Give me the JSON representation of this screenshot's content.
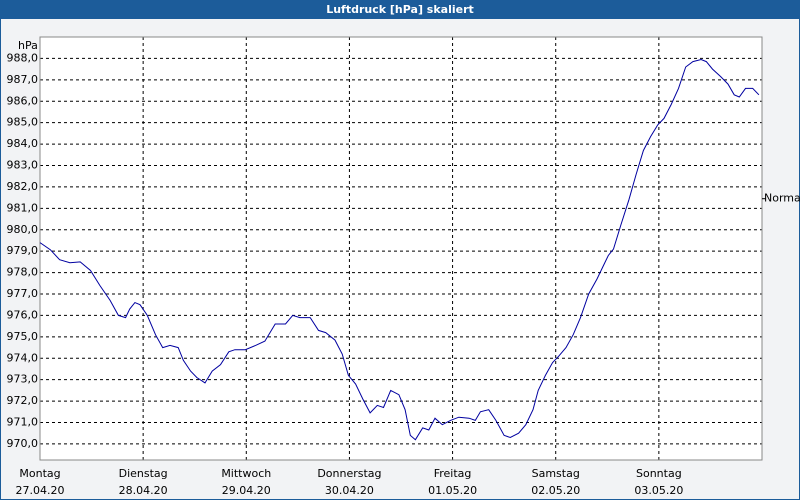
{
  "chart_data": {
    "type": "line",
    "title": "Luftdruck [hPa] skaliert",
    "y_label": "hPa",
    "x": [
      0,
      0.1,
      0.19,
      0.29,
      0.39,
      0.49,
      0.58,
      0.68,
      0.76,
      0.83,
      0.87,
      0.92,
      0.97,
      1.04,
      1.12,
      1.19,
      1.26,
      1.34,
      1.39,
      1.46,
      1.52,
      1.6,
      1.67,
      1.75,
      1.83,
      1.89,
      1.99,
      2.09,
      2.18,
      2.28,
      2.38,
      2.45,
      2.52,
      2.62,
      2.7,
      2.77,
      2.86,
      2.93,
      2.99,
      3.06,
      3.13,
      3.2,
      3.27,
      3.33,
      3.4,
      3.48,
      3.54,
      3.59,
      3.64,
      3.71,
      3.77,
      3.83,
      3.9,
      3.98,
      4.06,
      4.16,
      4.22,
      4.27,
      4.35,
      4.42,
      4.5,
      4.56,
      4.64,
      4.71,
      4.78,
      4.83,
      4.9,
      4.97,
      5.03,
      5.1,
      5.17,
      5.24,
      5.32,
      5.4,
      5.47,
      5.51,
      5.56,
      5.63,
      5.71,
      5.78,
      5.85,
      5.92,
      5.99,
      6.05,
      6.12,
      6.19,
      6.26,
      6.33,
      6.41,
      6.46,
      6.52,
      6.6,
      6.67,
      6.73,
      6.78,
      6.84,
      6.91,
      6.97
    ],
    "values": [
      979.4,
      979.07,
      978.6,
      978.46,
      978.5,
      978.1,
      977.4,
      976.7,
      976.0,
      975.9,
      976.3,
      976.6,
      976.5,
      976.0,
      975.1,
      974.5,
      974.6,
      974.5,
      973.9,
      973.4,
      973.1,
      972.85,
      973.4,
      973.7,
      974.3,
      974.4,
      974.4,
      974.6,
      974.8,
      975.6,
      975.6,
      976.0,
      975.9,
      975.9,
      975.3,
      975.2,
      974.85,
      974.2,
      973.2,
      972.8,
      972.1,
      971.45,
      971.8,
      971.7,
      972.5,
      972.3,
      971.6,
      970.4,
      970.2,
      970.75,
      970.65,
      971.2,
      970.9,
      971.1,
      971.25,
      971.2,
      971.1,
      971.5,
      971.6,
      971.1,
      970.4,
      970.3,
      970.5,
      970.9,
      971.6,
      972.5,
      973.2,
      973.8,
      974.1,
      974.5,
      975.1,
      975.9,
      977.0,
      977.7,
      978.4,
      978.8,
      979.1,
      980.2,
      981.4,
      982.6,
      983.7,
      984.35,
      984.9,
      985.2,
      985.85,
      986.6,
      987.6,
      987.85,
      987.95,
      987.85,
      987.5,
      987.15,
      986.8,
      986.3,
      986.2,
      986.6,
      986.6,
      986.3
    ],
    "color": "#0000a0",
    "xlim": [
      0,
      7
    ],
    "xticks": [
      {
        "value": 0,
        "label": [
          "Montag",
          "27.04.20"
        ]
      },
      {
        "value": 1,
        "label": [
          "Dienstag",
          "28.04.20"
        ]
      },
      {
        "value": 2,
        "label": [
          "Mittwoch",
          "29.04.20"
        ]
      },
      {
        "value": 3,
        "label": [
          "Donnerstag",
          "30.04.20"
        ]
      },
      {
        "value": 4,
        "label": [
          "Freitag",
          "01.05.20"
        ]
      },
      {
        "value": 5,
        "label": [
          "Samstag",
          "02.05.20"
        ]
      },
      {
        "value": 6,
        "label": [
          "Sonntag",
          "03.05.20"
        ]
      }
    ],
    "ylim": [
      969.25,
      989
    ],
    "yticks": [
      {
        "value": 970,
        "label": "970,0"
      },
      {
        "value": 971,
        "label": "971,0"
      },
      {
        "value": 972,
        "label": "972,0"
      },
      {
        "value": 973,
        "label": "973,0"
      },
      {
        "value": 974,
        "label": "974,0"
      },
      {
        "value": 975,
        "label": "975,0"
      },
      {
        "value": 976,
        "label": "976,0"
      },
      {
        "value": 977,
        "label": "977,0"
      },
      {
        "value": 978,
        "label": "978,0"
      },
      {
        "value": 979,
        "label": "979,0"
      },
      {
        "value": 980,
        "label": "980,0"
      },
      {
        "value": 981,
        "label": "981,0"
      },
      {
        "value": 982,
        "label": "982,0"
      },
      {
        "value": 983,
        "label": "983,0"
      },
      {
        "value": 984,
        "label": "984,0"
      },
      {
        "value": 985,
        "label": "985,0"
      },
      {
        "value": 986,
        "label": "986,0"
      },
      {
        "value": 987,
        "label": "987,0"
      },
      {
        "value": 988,
        "label": "988,0"
      }
    ],
    "annotations": [
      {
        "text": "Normal",
        "y": 981.45
      }
    ],
    "grid": true
  }
}
